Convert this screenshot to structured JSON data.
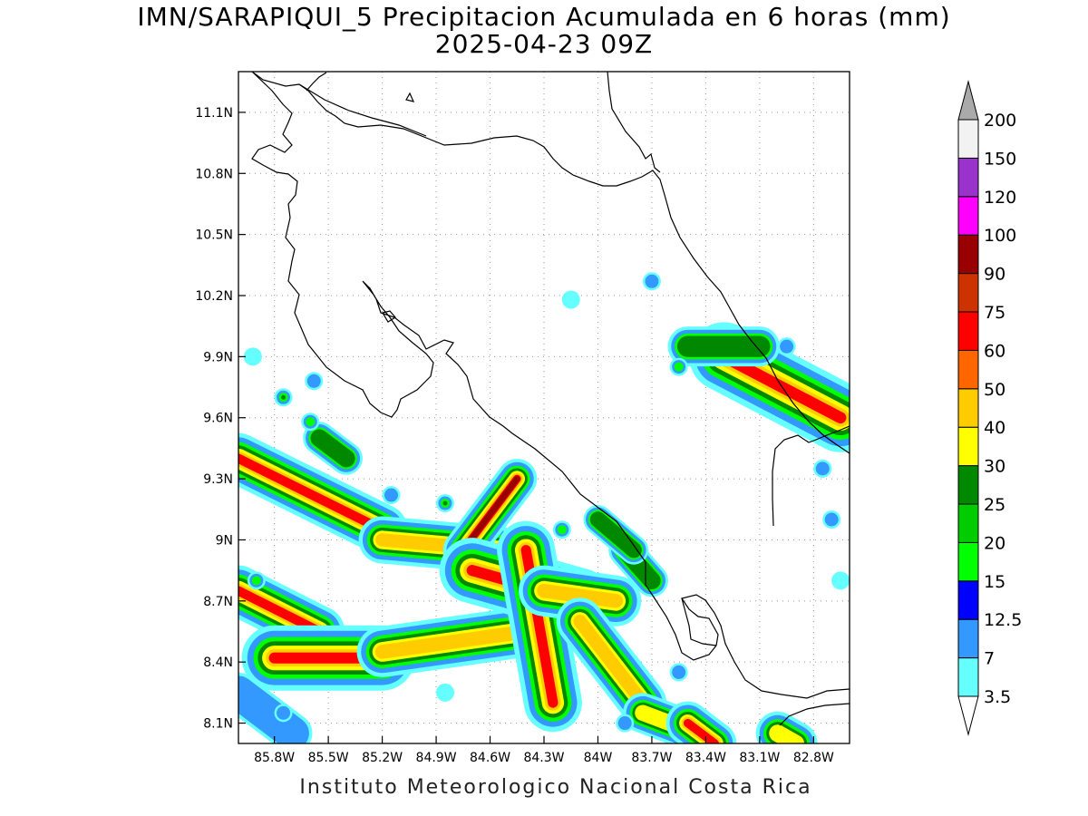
{
  "title": {
    "line1": "IMN/SARAPIQUI_5 Precipitacion Acumulada en 6 horas (mm)",
    "line2": "2025-04-23 09Z"
  },
  "footer": "Instituto Meteorologico Nacional Costa Rica",
  "map": {
    "lon_range": [
      -86.0,
      -82.6
    ],
    "lat_range": [
      8.0,
      11.3
    ],
    "lat_ticks": [
      "11.1N",
      "10.8N",
      "10.5N",
      "10.2N",
      "9.9N",
      "9.6N",
      "9.3N",
      "9N",
      "8.7N",
      "8.4N",
      "8.1N"
    ],
    "lat_values": [
      11.1,
      10.8,
      10.5,
      10.2,
      9.9,
      9.6,
      9.3,
      9.0,
      8.7,
      8.4,
      8.1
    ],
    "lon_ticks": [
      "85.8W",
      "85.5W",
      "85.2W",
      "84.9W",
      "84.6W",
      "84.3W",
      "84W",
      "83.7W",
      "83.4W",
      "83.1W",
      "82.8W"
    ],
    "lon_values": [
      -85.8,
      -85.5,
      -85.2,
      -84.9,
      -84.6,
      -84.3,
      -84.0,
      -83.7,
      -83.4,
      -83.1,
      -82.8
    ],
    "grid": true
  },
  "colorbar": {
    "labels": [
      "3.5",
      "7",
      "12.5",
      "15",
      "20",
      "25",
      "30",
      "40",
      "50",
      "60",
      "75",
      "90",
      "100",
      "120",
      "150",
      "200"
    ],
    "colors": [
      "#66ffff",
      "#3399ff",
      "#0000ff",
      "#00ff00",
      "#00cc00",
      "#008800",
      "#ffff00",
      "#ffcc00",
      "#ff6600",
      "#ff0000",
      "#cc3300",
      "#990000",
      "#ff00ff",
      "#9933cc",
      "#f2f2f2",
      "#aaaaaa"
    ],
    "underflow_color": "#ffffff",
    "overflow_color": "#aaaaaa"
  },
  "precip_levels": [
    "#66ffff",
    "#3399ff",
    "#00ff00",
    "#008800",
    "#ffff00",
    "#ffcc00",
    "#ff0000",
    "#990000"
  ]
}
